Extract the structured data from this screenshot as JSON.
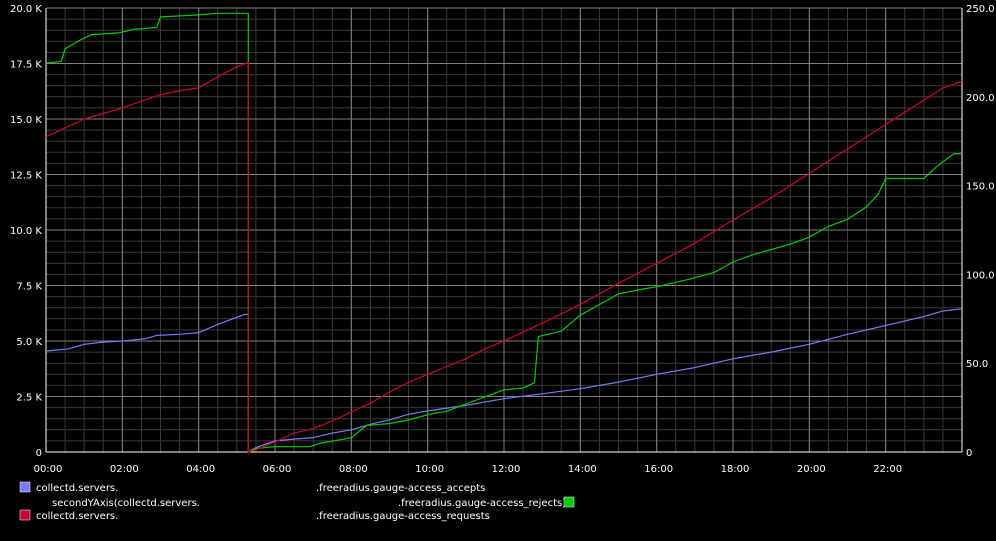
{
  "chart_data": {
    "type": "line",
    "x_ticks": [
      "00:00",
      "02:00",
      "04:00",
      "06:00",
      "08:00",
      "10:00",
      "12:00",
      "14:00",
      "16:00",
      "18:00",
      "20:00",
      "22:00"
    ],
    "x_range_hours": [
      0,
      24
    ],
    "y_left": {
      "ticks": [
        "0",
        "2.5 K",
        "5.0 K",
        "7.5 K",
        "10.0 K",
        "12.5 K",
        "15.0 K",
        "17.5 K",
        "20.0 K"
      ],
      "ylim": [
        0,
        20000
      ]
    },
    "y_right": {
      "ticks": [
        "0",
        "50.0",
        "100.0",
        "150.0",
        "200.0",
        "250.0"
      ],
      "ylim": [
        0,
        250
      ]
    },
    "grid": true,
    "legend_placement": "bottom",
    "series": [
      {
        "axis": "left",
        "color": "#7b7bf3",
        "legend": {
          "prefix": "collectd.servers.",
          "suffix": ".freeradius.gauge-access_accepts",
          "swatch_side": "left"
        },
        "points": [
          [
            0.0,
            4550
          ],
          [
            0.6,
            4650
          ],
          [
            1.0,
            4850
          ],
          [
            1.5,
            4950
          ],
          [
            2.0,
            5000
          ],
          [
            2.6,
            5100
          ],
          [
            2.9,
            5250
          ],
          [
            3.5,
            5300
          ],
          [
            4.0,
            5380
          ],
          [
            4.5,
            5750
          ],
          [
            5.2,
            6200
          ],
          [
            5.3,
            6200
          ],
          [
            5.3,
            0
          ],
          [
            5.5,
            200
          ],
          [
            6.0,
            500
          ],
          [
            6.5,
            580
          ],
          [
            7.0,
            650
          ],
          [
            7.5,
            850
          ],
          [
            8.0,
            1000
          ],
          [
            8.5,
            1250
          ],
          [
            9.0,
            1450
          ],
          [
            9.5,
            1700
          ],
          [
            10.0,
            1850
          ],
          [
            11.0,
            2100
          ],
          [
            12.0,
            2400
          ],
          [
            13.0,
            2620
          ],
          [
            14.0,
            2850
          ],
          [
            15.0,
            3150
          ],
          [
            16.0,
            3500
          ],
          [
            17.0,
            3800
          ],
          [
            18.0,
            4200
          ],
          [
            19.0,
            4500
          ],
          [
            20.0,
            4850
          ],
          [
            21.0,
            5300
          ],
          [
            22.0,
            5700
          ],
          [
            23.0,
            6100
          ],
          [
            23.5,
            6350
          ],
          [
            24.0,
            6450
          ]
        ]
      },
      {
        "axis": "right",
        "color": "#00cc00",
        "legend": {
          "prefix": "secondYAxis(collectd.servers.",
          "suffix": ".freeradius.gauge-access_rejects)",
          "swatch_side": "right"
        },
        "points": [
          [
            0.0,
            219
          ],
          [
            0.4,
            220
          ],
          [
            0.5,
            227
          ],
          [
            0.9,
            232
          ],
          [
            1.2,
            235
          ],
          [
            1.9,
            236
          ],
          [
            2.3,
            238
          ],
          [
            2.9,
            239
          ],
          [
            3.0,
            245
          ],
          [
            3.9,
            246
          ],
          [
            4.5,
            247
          ],
          [
            5.3,
            247
          ],
          [
            5.3,
            220
          ],
          [
            5.3,
            0
          ],
          [
            5.5,
            2
          ],
          [
            6.0,
            3
          ],
          [
            6.9,
            3
          ],
          [
            7.2,
            5
          ],
          [
            8.0,
            8
          ],
          [
            8.4,
            15
          ],
          [
            9.0,
            16
          ],
          [
            9.5,
            18
          ],
          [
            10.0,
            21
          ],
          [
            10.5,
            23
          ],
          [
            11.0,
            27
          ],
          [
            11.5,
            31
          ],
          [
            12.0,
            35
          ],
          [
            12.5,
            36
          ],
          [
            12.8,
            39
          ],
          [
            12.9,
            65
          ],
          [
            13.5,
            68
          ],
          [
            14.0,
            77
          ],
          [
            14.5,
            83
          ],
          [
            15.0,
            89
          ],
          [
            15.7,
            92
          ],
          [
            16.0,
            93
          ],
          [
            16.8,
            97
          ],
          [
            17.5,
            101
          ],
          [
            18.0,
            107
          ],
          [
            18.5,
            111
          ],
          [
            19.5,
            117
          ],
          [
            20.0,
            121
          ],
          [
            20.5,
            127
          ],
          [
            21.0,
            131
          ],
          [
            21.5,
            138
          ],
          [
            21.8,
            145
          ],
          [
            22.0,
            154
          ],
          [
            23.0,
            154
          ],
          [
            23.3,
            160
          ],
          [
            23.6,
            165
          ],
          [
            23.8,
            168
          ],
          [
            24.0,
            168
          ]
        ]
      },
      {
        "axis": "left",
        "color": "#cc0033",
        "legend": {
          "prefix": "collectd.servers.",
          "suffix": ".freeradius.gauge-access_requests",
          "swatch_side": "left"
        },
        "points": [
          [
            0.0,
            14200
          ],
          [
            0.5,
            14600
          ],
          [
            1.0,
            15000
          ],
          [
            2.0,
            15500
          ],
          [
            2.5,
            15800
          ],
          [
            3.0,
            16100
          ],
          [
            3.6,
            16300
          ],
          [
            4.0,
            16400
          ],
          [
            4.5,
            16900
          ],
          [
            5.0,
            17350
          ],
          [
            5.3,
            17550
          ],
          [
            5.3,
            0
          ],
          [
            5.5,
            100
          ],
          [
            6.0,
            450
          ],
          [
            6.5,
            850
          ],
          [
            7.0,
            1050
          ],
          [
            7.5,
            1400
          ],
          [
            8.0,
            1800
          ],
          [
            8.5,
            2200
          ],
          [
            9.0,
            2700
          ],
          [
            9.5,
            3150
          ],
          [
            10.0,
            3500
          ],
          [
            10.5,
            3850
          ],
          [
            11.0,
            4200
          ],
          [
            11.5,
            4650
          ],
          [
            12.0,
            5000
          ],
          [
            13.0,
            5800
          ],
          [
            14.0,
            6650
          ],
          [
            15.0,
            7600
          ],
          [
            16.0,
            8500
          ],
          [
            17.0,
            9400
          ],
          [
            18.0,
            10450
          ],
          [
            19.0,
            11450
          ],
          [
            20.0,
            12550
          ],
          [
            21.0,
            13650
          ],
          [
            22.0,
            14750
          ],
          [
            23.0,
            15850
          ],
          [
            23.5,
            16400
          ],
          [
            24.0,
            16700
          ]
        ]
      }
    ]
  }
}
